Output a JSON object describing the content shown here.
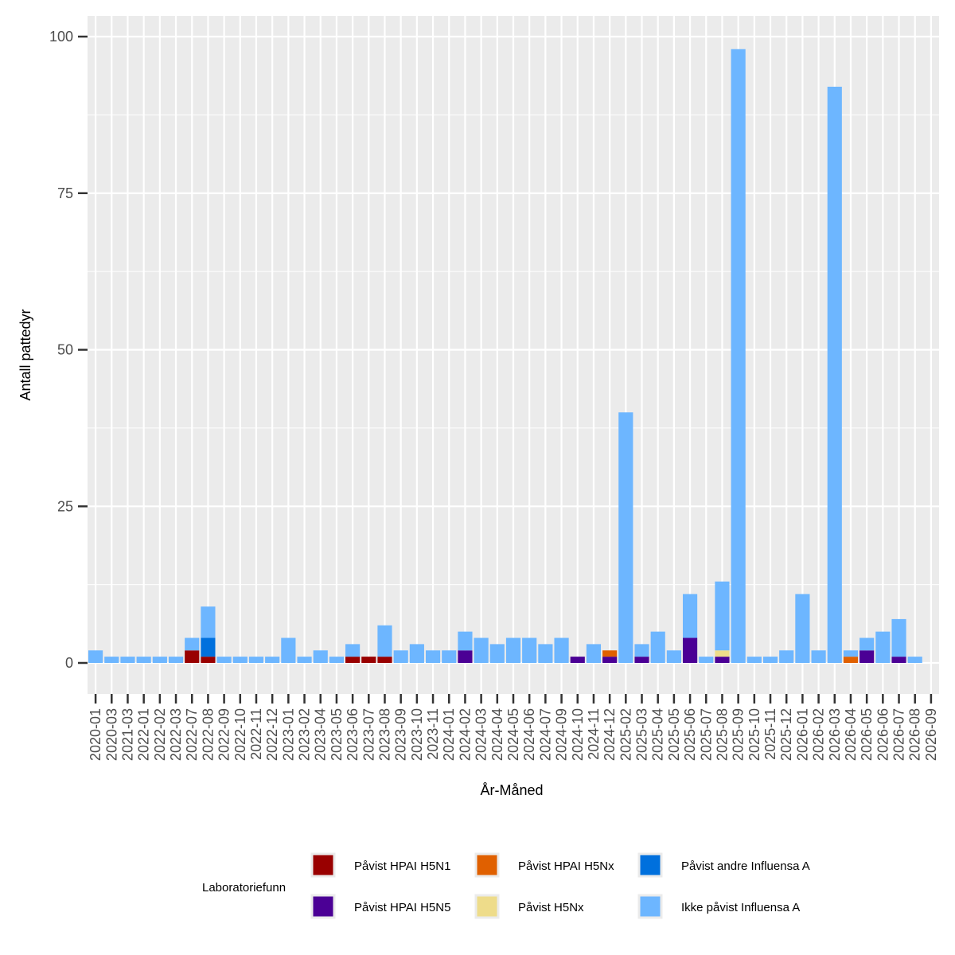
{
  "chart_data": {
    "type": "bar",
    "stacked": true,
    "xlabel": "År-Måned",
    "ylabel": "Antall pattedyr",
    "ylim": [
      -5,
      103
    ],
    "yticks": [
      0,
      25,
      50,
      75,
      100
    ],
    "grid": true,
    "legend_title": "Laboratoriefunn",
    "legend_position": "bottom",
    "categories": [
      "2020-01",
      "2020-03",
      "2021-03",
      "2022-01",
      "2022-02",
      "2022-03",
      "2022-07",
      "2022-08",
      "2022-09",
      "2022-10",
      "2022-11",
      "2022-12",
      "2023-01",
      "2023-02",
      "2023-04",
      "2023-05",
      "2023-06",
      "2023-07",
      "2023-08",
      "2023-09",
      "2023-10",
      "2023-11",
      "2024-01",
      "2024-02",
      "2024-03",
      "2024-04",
      "2024-05",
      "2024-06",
      "2024-07",
      "2024-09",
      "2024-10",
      "2024-11",
      "2024-12",
      "2025-02",
      "2025-03",
      "2025-04",
      "2025-05",
      "2025-06",
      "2025-07",
      "2025-08",
      "2025-09",
      "2025-10",
      "2025-11",
      "2025-12",
      "2026-01",
      "2026-02",
      "2026-03",
      "2026-04",
      "2026-05",
      "2026-06",
      "2026-07",
      "2026-08",
      "2026-09"
    ],
    "series": [
      {
        "name": "Påvist HPAI H5N1",
        "color": "#990000",
        "values": [
          0,
          0,
          0,
          0,
          0,
          0,
          2,
          1,
          0,
          0,
          0,
          0,
          0,
          0,
          0,
          0,
          1,
          1,
          1,
          0,
          0,
          0,
          0,
          0,
          0,
          0,
          0,
          0,
          0,
          0,
          0,
          0,
          0,
          0,
          0,
          0,
          0,
          0,
          0,
          0,
          0,
          0,
          0,
          0,
          0,
          0,
          0,
          0,
          0,
          0,
          0,
          0,
          0
        ]
      },
      {
        "name": "Påvist HPAI H5N5",
        "color": "#4b0095",
        "values": [
          0,
          0,
          0,
          0,
          0,
          0,
          0,
          0,
          0,
          0,
          0,
          0,
          0,
          0,
          0,
          0,
          0,
          0,
          0,
          0,
          0,
          0,
          0,
          2,
          0,
          0,
          0,
          0,
          0,
          0,
          1,
          0,
          1,
          0,
          1,
          0,
          0,
          4,
          0,
          1,
          0,
          0,
          0,
          0,
          0,
          0,
          0,
          0,
          2,
          0,
          1,
          0,
          0
        ]
      },
      {
        "name": "Påvist HPAI H5Nx",
        "color": "#e06000",
        "values": [
          0,
          0,
          0,
          0,
          0,
          0,
          0,
          0,
          0,
          0,
          0,
          0,
          0,
          0,
          0,
          0,
          0,
          0,
          0,
          0,
          0,
          0,
          0,
          0,
          0,
          0,
          0,
          0,
          0,
          0,
          0,
          0,
          1,
          0,
          0,
          0,
          0,
          0,
          0,
          0,
          0,
          0,
          0,
          0,
          0,
          0,
          0,
          1,
          0,
          0,
          0,
          0,
          0
        ]
      },
      {
        "name": "Påvist H5Nx",
        "color": "#eedc8a",
        "values": [
          0,
          0,
          0,
          0,
          0,
          0,
          0,
          0,
          0,
          0,
          0,
          0,
          0,
          0,
          0,
          0,
          0,
          0,
          0,
          0,
          0,
          0,
          0,
          0,
          0,
          0,
          0,
          0,
          0,
          0,
          0,
          0,
          0,
          0,
          0,
          0,
          0,
          0,
          0,
          1,
          0,
          0,
          0,
          0,
          0,
          0,
          0,
          0,
          0,
          0,
          0,
          0,
          0
        ]
      },
      {
        "name": "Påvist andre Influensa A",
        "color": "#0070dd",
        "values": [
          0,
          0,
          0,
          0,
          0,
          0,
          0,
          3,
          0,
          0,
          0,
          0,
          0,
          0,
          0,
          0,
          0,
          0,
          0,
          0,
          0,
          0,
          0,
          0,
          0,
          0,
          0,
          0,
          0,
          0,
          0,
          0,
          0,
          0,
          0,
          0,
          0,
          0,
          0,
          0,
          0,
          0,
          0,
          0,
          0,
          0,
          0,
          0,
          0,
          0,
          0,
          0,
          0
        ]
      },
      {
        "name": "Ikke påvist Influensa A",
        "color": "#6db6ff",
        "values": [
          2,
          1,
          1,
          1,
          1,
          1,
          2,
          5,
          1,
          1,
          1,
          1,
          4,
          1,
          2,
          1,
          2,
          0,
          5,
          2,
          3,
          2,
          2,
          3,
          4,
          3,
          4,
          4,
          3,
          4,
          0,
          3,
          0,
          40,
          2,
          5,
          2,
          7,
          1,
          11,
          98,
          1,
          1,
          2,
          11,
          2,
          92,
          1,
          2,
          5,
          6,
          1,
          0
        ]
      }
    ]
  }
}
